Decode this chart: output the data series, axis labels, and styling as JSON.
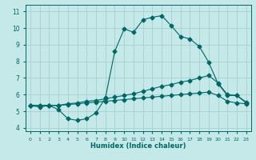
{
  "title": "",
  "xlabel": "Humidex (Indice chaleur)",
  "xlim": [
    -0.5,
    23.5
  ],
  "ylim": [
    3.8,
    11.4
  ],
  "xticks": [
    0,
    1,
    2,
    3,
    4,
    5,
    6,
    7,
    8,
    9,
    10,
    11,
    12,
    13,
    14,
    15,
    16,
    17,
    18,
    19,
    20,
    21,
    22,
    23
  ],
  "yticks": [
    4,
    5,
    6,
    7,
    8,
    9,
    10,
    11
  ],
  "bg_color": "#c5e8e8",
  "grid_color": "#a8d0d0",
  "line_color": "#006666",
  "line1_y": [
    5.35,
    5.25,
    5.35,
    5.1,
    4.55,
    4.45,
    4.55,
    4.9,
    5.8,
    8.6,
    9.95,
    9.75,
    10.5,
    10.65,
    10.75,
    10.15,
    9.5,
    9.35,
    8.9,
    7.95,
    6.65,
    5.95,
    5.95,
    5.5
  ],
  "line2_y": [
    5.35,
    5.35,
    5.35,
    5.35,
    5.45,
    5.5,
    5.6,
    5.65,
    5.75,
    5.85,
    5.95,
    6.05,
    6.2,
    6.35,
    6.5,
    6.6,
    6.75,
    6.85,
    7.0,
    7.15,
    6.7,
    6.0,
    5.95,
    5.55
  ],
  "line3_y": [
    5.35,
    5.35,
    5.35,
    5.35,
    5.4,
    5.45,
    5.5,
    5.55,
    5.6,
    5.65,
    5.7,
    5.75,
    5.8,
    5.85,
    5.9,
    5.95,
    6.0,
    6.05,
    6.1,
    6.15,
    5.95,
    5.6,
    5.5,
    5.45
  ],
  "marker_size": 2.5,
  "linewidth": 0.8,
  "xlabel_fontsize": 6.0,
  "tick_fontsize_x": 4.5,
  "tick_fontsize_y": 5.5
}
